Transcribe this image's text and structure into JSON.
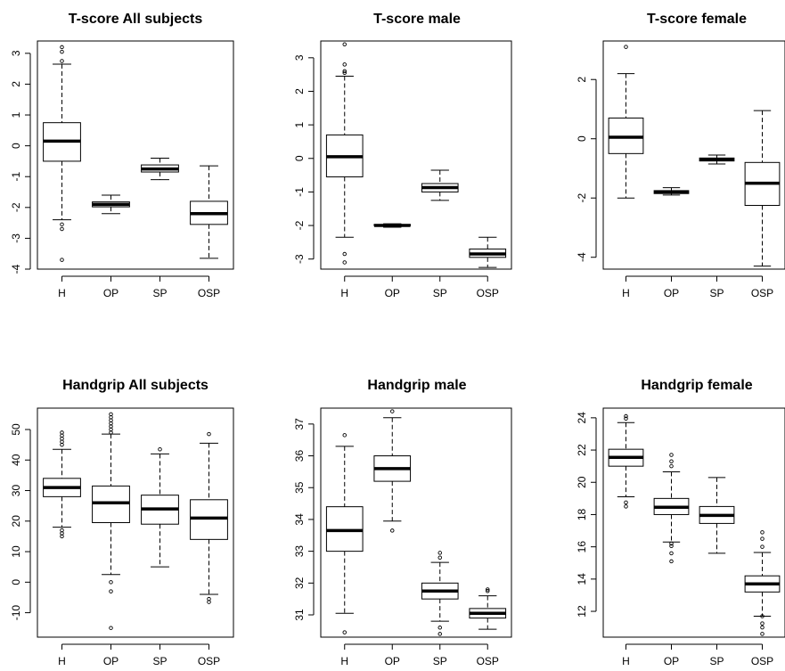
{
  "chart_data": [
    {
      "type": "boxplot",
      "title": "T-score All subjects",
      "categories": [
        "H",
        "OP",
        "SP",
        "OSP"
      ],
      "ylim": [
        -4,
        3.4
      ],
      "yticks": [
        -4,
        -3,
        -2,
        -1,
        0,
        1,
        2,
        3
      ],
      "boxes": [
        {
          "min": -2.4,
          "q1": -0.5,
          "median": 0.15,
          "q3": 0.75,
          "max": 2.65,
          "outliers": [
            -2.7,
            -2.55,
            -3.7,
            2.75,
            3.05,
            3.2
          ]
        },
        {
          "min": -2.2,
          "q1": -1.98,
          "median": -1.9,
          "q3": -1.82,
          "max": -1.6,
          "outliers": []
        },
        {
          "min": -1.1,
          "q1": -0.85,
          "median": -0.75,
          "q3": -0.62,
          "max": -0.4,
          "outliers": []
        },
        {
          "min": -3.65,
          "q1": -2.55,
          "median": -2.2,
          "q3": -1.8,
          "max": -0.65,
          "outliers": []
        }
      ]
    },
    {
      "type": "boxplot",
      "title": "T-score male",
      "categories": [
        "H",
        "OP",
        "SP",
        "OSP"
      ],
      "ylim": [
        -3.3,
        3.5
      ],
      "yticks": [
        -3,
        -2,
        -1,
        0,
        1,
        2,
        3
      ],
      "boxes": [
        {
          "min": -2.35,
          "q1": -0.55,
          "median": 0.05,
          "q3": 0.7,
          "max": 2.45,
          "outliers": [
            -2.85,
            -3.1,
            2.6,
            2.55,
            2.8,
            3.4
          ]
        },
        {
          "min": -2.05,
          "q1": -2.0,
          "median": -2.0,
          "q3": -1.97,
          "max": -1.95,
          "outliers": []
        },
        {
          "min": -1.25,
          "q1": -1.0,
          "median": -0.87,
          "q3": -0.75,
          "max": -0.35,
          "outliers": []
        },
        {
          "min": -3.25,
          "q1": -2.95,
          "median": -2.85,
          "q3": -2.7,
          "max": -2.35,
          "outliers": []
        }
      ]
    },
    {
      "type": "boxplot",
      "title": "T-score female",
      "categories": [
        "H",
        "OP",
        "SP",
        "OSP"
      ],
      "ylim": [
        -4.4,
        3.3
      ],
      "yticks": [
        -4,
        -2,
        0,
        2
      ],
      "boxes": [
        {
          "min": -2.0,
          "q1": -0.5,
          "median": 0.05,
          "q3": 0.7,
          "max": 2.2,
          "outliers": [
            3.1
          ]
        },
        {
          "min": -1.9,
          "q1": -1.85,
          "median": -1.8,
          "q3": -1.75,
          "max": -1.65,
          "outliers": []
        },
        {
          "min": -0.85,
          "q1": -0.75,
          "median": -0.7,
          "q3": -0.65,
          "max": -0.55,
          "outliers": []
        },
        {
          "min": -4.3,
          "q1": -2.25,
          "median": -1.5,
          "q3": -0.8,
          "max": 0.95,
          "outliers": []
        }
      ]
    },
    {
      "type": "boxplot",
      "title": "Handgrip All subjects",
      "categories": [
        "H",
        "OP",
        "SP",
        "OSP"
      ],
      "ylim": [
        -18,
        57
      ],
      "yticks": [
        -10,
        0,
        10,
        20,
        30,
        40,
        50
      ],
      "boxes": [
        {
          "min": 18,
          "q1": 28,
          "median": 31,
          "q3": 34,
          "max": 43.5,
          "outliers": [
            15,
            16,
            17,
            45,
            46,
            47,
            48,
            49
          ]
        },
        {
          "min": 2.5,
          "q1": 19.5,
          "median": 26,
          "q3": 31.5,
          "max": 48.5,
          "outliers": [
            -3,
            0,
            -15,
            49,
            50,
            51,
            52,
            53,
            54,
            55
          ]
        },
        {
          "min": 5,
          "q1": 19,
          "median": 24,
          "q3": 28.5,
          "max": 42,
          "outliers": [
            43.5
          ]
        },
        {
          "min": -4,
          "q1": 14,
          "median": 21,
          "q3": 27,
          "max": 45.5,
          "outliers": [
            -5.5,
            -6.5,
            48.5
          ]
        }
      ]
    },
    {
      "type": "boxplot",
      "title": "Handgrip male",
      "categories": [
        "H",
        "OP",
        "SP",
        "OSP"
      ],
      "ylim": [
        30.3,
        37.5
      ],
      "yticks": [
        31,
        32,
        33,
        34,
        35,
        36,
        37
      ],
      "boxes": [
        {
          "min": 31.05,
          "q1": 33.0,
          "median": 33.65,
          "q3": 34.4,
          "max": 36.3,
          "outliers": [
            30.45,
            36.65
          ]
        },
        {
          "min": 33.95,
          "q1": 35.2,
          "median": 35.6,
          "q3": 36.0,
          "max": 37.2,
          "outliers": [
            33.65,
            37.4
          ]
        },
        {
          "min": 30.8,
          "q1": 31.5,
          "median": 31.75,
          "q3": 32.0,
          "max": 32.65,
          "outliers": [
            30.4,
            30.6,
            32.8,
            32.95
          ]
        },
        {
          "min": 30.55,
          "q1": 30.9,
          "median": 31.05,
          "q3": 31.2,
          "max": 31.6,
          "outliers": [
            31.75,
            31.8
          ]
        }
      ]
    },
    {
      "type": "boxplot",
      "title": "Handgrip female",
      "categories": [
        "H",
        "OP",
        "SP",
        "OSP"
      ],
      "ylim": [
        10.4,
        24.6
      ],
      "yticks": [
        12,
        14,
        16,
        18,
        20,
        22,
        24
      ],
      "boxes": [
        {
          "min": 19.1,
          "q1": 21.0,
          "median": 21.55,
          "q3": 22.05,
          "max": 23.7,
          "outliers": [
            18.5,
            18.75,
            23.95,
            24.1
          ]
        },
        {
          "min": 16.3,
          "q1": 18.0,
          "median": 18.45,
          "q3": 19.0,
          "max": 20.65,
          "outliers": [
            15.1,
            15.6,
            16.05,
            16.2,
            21.0,
            21.3,
            21.7
          ]
        },
        {
          "min": 15.6,
          "q1": 17.45,
          "median": 17.95,
          "q3": 18.5,
          "max": 20.3,
          "outliers": []
        },
        {
          "min": 11.7,
          "q1": 13.2,
          "median": 13.7,
          "q3": 14.2,
          "max": 15.65,
          "outliers": [
            10.6,
            11.0,
            11.25,
            11.7,
            16.0,
            16.5,
            16.9
          ]
        }
      ]
    }
  ]
}
